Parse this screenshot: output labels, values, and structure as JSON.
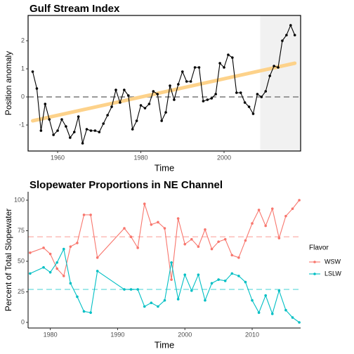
{
  "chart_data": [
    {
      "type": "line",
      "title": "Gulf Stream Index",
      "xlabel": "Time",
      "ylabel": "Position anomaly",
      "x": [
        1954,
        1955,
        1956,
        1957,
        1958,
        1959,
        1960,
        1961,
        1962,
        1963,
        1964,
        1965,
        1966,
        1967,
        1968,
        1969,
        1970,
        1971,
        1972,
        1973,
        1974,
        1975,
        1976,
        1977,
        1978,
        1979,
        1980,
        1981,
        1982,
        1983,
        1984,
        1985,
        1986,
        1987,
        1988,
        1989,
        1990,
        1991,
        1992,
        1993,
        1994,
        1995,
        1996,
        1997,
        1998,
        1999,
        2000,
        2001,
        2002,
        2003,
        2004,
        2005,
        2006,
        2007,
        2008,
        2009,
        2010,
        2011,
        2012,
        2013,
        2014,
        2015,
        2016,
        2017
      ],
      "series": [
        {
          "color": "#000000",
          "values": [
            0.9,
            0.3,
            -1.2,
            -0.25,
            -0.8,
            -1.35,
            -1.2,
            -0.8,
            -1.05,
            -1.45,
            -1.25,
            -0.7,
            -1.65,
            -1.15,
            -1.2,
            -1.2,
            -1.25,
            -0.95,
            -0.65,
            -0.35,
            0.25,
            -0.2,
            0.25,
            0.05,
            -1.15,
            -0.85,
            -0.3,
            -0.4,
            -0.25,
            0.2,
            0.1,
            -0.85,
            -0.55,
            0.4,
            -0.1,
            0.45,
            0.9,
            0.55,
            0.55,
            1.05,
            1.05,
            -0.15,
            -0.1,
            -0.05,
            0.1,
            1.2,
            1.05,
            1.5,
            1.4,
            0.15,
            0.15,
            -0.2,
            -0.35,
            -0.6,
            0.1,
            0.0,
            0.2,
            0.75,
            1.1,
            1.05,
            2.0,
            2.2,
            2.55,
            2.2
          ]
        }
      ],
      "trend": {
        "x": [
          1954,
          2017
        ],
        "values": [
          -0.85,
          1.2
        ],
        "color": "#fdd28a"
      },
      "hline": 0,
      "shade": [
        2008.7,
        2018.4
      ],
      "xlim": [
        1952.9,
        2018.4
      ],
      "ylim": [
        -1.925,
        2.9
      ],
      "xticks": [
        1960,
        1980,
        2000
      ],
      "yticks": [
        -1,
        0,
        1,
        2
      ]
    },
    {
      "type": "line",
      "title": "Slopewater Proportions in NE Channel",
      "xlabel": "Time",
      "ylabel": "Percent of Total Slopewater",
      "legend_title": "Flavor",
      "x": [
        1977,
        1979,
        1980,
        1981,
        1982,
        1983,
        1984,
        1985,
        1986,
        1987,
        1991,
        1992,
        1993,
        1994,
        1995,
        1996,
        1997,
        1998,
        1999,
        2000,
        2001,
        2002,
        2003,
        2004,
        2005,
        2006,
        2007,
        2008,
        2009,
        2010,
        2011,
        2012,
        2013,
        2014,
        2015,
        2016,
        2017
      ],
      "series": [
        {
          "name": "WSW",
          "color": "#F8766D",
          "mean": 70,
          "values": [
            57,
            61,
            56,
            44,
            38,
            62,
            65,
            88,
            88,
            53,
            77,
            70,
            61,
            97,
            80,
            82,
            77,
            35,
            85,
            64,
            68,
            62,
            76,
            60,
            66,
            68,
            55,
            53,
            67,
            81,
            92,
            79,
            93,
            69,
            87,
            93,
            100
          ]
        },
        {
          "name": "LSLW",
          "color": "#00BFC4",
          "mean": 27,
          "values": [
            40,
            45,
            41,
            49,
            60,
            32,
            21,
            9,
            8,
            42,
            27,
            27,
            27,
            13,
            16,
            13,
            18,
            49,
            19,
            39,
            26,
            39,
            18,
            32,
            35,
            34,
            40,
            38,
            33,
            18,
            8,
            22,
            7,
            26,
            10,
            4,
            0
          ]
        }
      ],
      "xlim": [
        1976.7,
        2017.2
      ],
      "ylim": [
        -4.6,
        106.9
      ],
      "xticks": [
        1980,
        1990,
        2000,
        2010
      ],
      "yticks": [
        0,
        25,
        50,
        75,
        100
      ]
    }
  ]
}
